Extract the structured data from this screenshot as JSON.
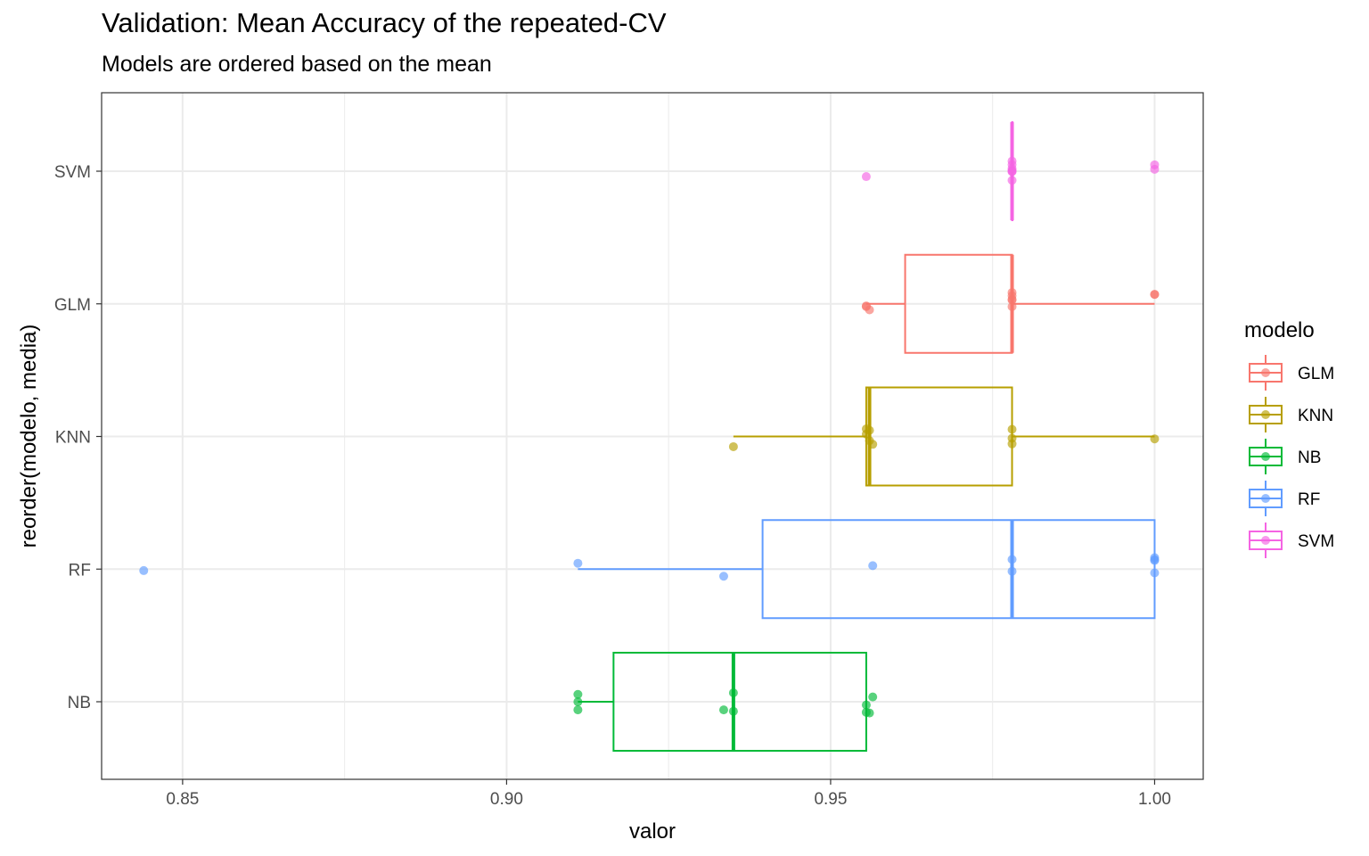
{
  "chart_data": {
    "type": "boxplot",
    "title": "Validation: Mean Accuracy of the repeated-CV",
    "subtitle": "Models are ordered based on the mean",
    "xlabel": "valor",
    "ylabel": "reorder(modelo, media)",
    "xlim": [
      0.8375,
      1.0075
    ],
    "x_ticks": [
      "0.85",
      "0.90",
      "0.95",
      "1.00"
    ],
    "x_tick_values": [
      0.85,
      0.9,
      0.95,
      1.0
    ],
    "categories": [
      "NB",
      "RF",
      "KNN",
      "GLM",
      "SVM"
    ],
    "legend": {
      "title": "modelo",
      "placement": "right",
      "entries": [
        "GLM",
        "KNN",
        "NB",
        "RF",
        "SVM"
      ]
    },
    "grid": true,
    "series": [
      {
        "name": "NB",
        "color": "#00BA38",
        "box": {
          "whisker_low": 0.911,
          "q1": 0.9165,
          "median": 0.935,
          "q3": 0.9555,
          "whisker_high": 0.9555
        },
        "points": [
          0.911,
          0.911,
          0.911,
          0.9335,
          0.935,
          0.935,
          0.9555,
          0.956,
          0.9565,
          0.9555
        ]
      },
      {
        "name": "RF",
        "color": "#619CFF",
        "box": {
          "whisker_low": 0.911,
          "q1": 0.9395,
          "median": 0.978,
          "q3": 1.0,
          "whisker_high": 1.0
        },
        "points": [
          0.844,
          0.911,
          0.9335,
          0.9565,
          0.978,
          0.978,
          1.0,
          1.0,
          1.0,
          1.0
        ]
      },
      {
        "name": "KNN",
        "color": "#B79F00",
        "box": {
          "whisker_low": 0.935,
          "q1": 0.9555,
          "median": 0.956,
          "q3": 0.978,
          "whisker_high": 1.0
        },
        "points": [
          0.935,
          0.9555,
          0.956,
          0.956,
          0.9555,
          0.9565,
          0.978,
          0.978,
          0.978,
          1.0
        ]
      },
      {
        "name": "GLM",
        "color": "#F8766D",
        "box": {
          "whisker_low": 0.9555,
          "q1": 0.9615,
          "median": 0.978,
          "q3": 0.978,
          "whisker_high": 1.0
        },
        "points": [
          0.9555,
          0.9555,
          0.956,
          0.978,
          0.978,
          0.978,
          0.978,
          1.0,
          1.0,
          0.978
        ]
      },
      {
        "name": "SVM",
        "color": "#F564E3",
        "box": {
          "whisker_low": 0.978,
          "q1": 0.978,
          "median": 0.978,
          "q3": 0.978,
          "whisker_high": 0.978
        },
        "points": [
          0.9555,
          0.978,
          0.978,
          0.978,
          0.978,
          0.978,
          0.978,
          1.0,
          1.0,
          0.978
        ]
      }
    ]
  }
}
